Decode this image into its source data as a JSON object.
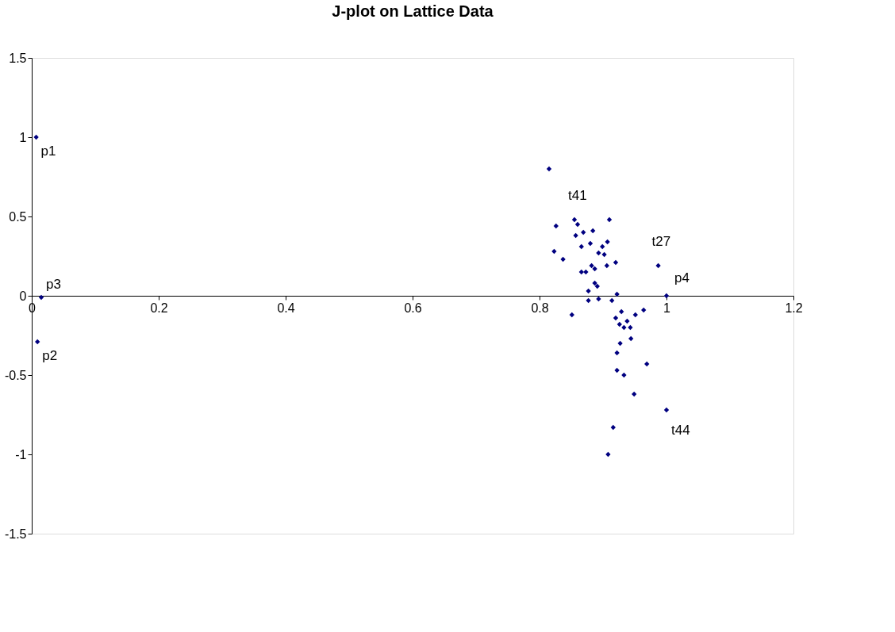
{
  "chart_data": {
    "type": "scatter",
    "title": "J-plot on Lattice Data",
    "series": [
      {
        "color": "#000080",
        "x": [
          0.007,
          0.009,
          0.015,
          1.0,
          0.815,
          0.855,
          0.91,
          0.826,
          0.86,
          0.869,
          0.884,
          0.857,
          0.866,
          0.88,
          0.907,
          0.899,
          0.823,
          0.893,
          0.902,
          0.837,
          0.92,
          0.882,
          0.887,
          0.906,
          0.866,
          0.873,
          0.987,
          0.887,
          0.891,
          0.877,
          0.922,
          0.877,
          0.893,
          0.914,
          0.851,
          0.929,
          0.964,
          0.951,
          0.92,
          0.938,
          0.926,
          0.933,
          0.943,
          0.944,
          0.927,
          0.922,
          0.969,
          0.922,
          0.933,
          0.949,
          1.0,
          0.916,
          0.908
        ],
        "values": [
          1.0,
          -0.29,
          -0.01,
          0.0,
          0.8,
          0.48,
          0.48,
          0.44,
          0.45,
          0.4,
          0.41,
          0.38,
          0.31,
          0.33,
          0.34,
          0.31,
          0.28,
          0.27,
          0.26,
          0.23,
          0.21,
          0.19,
          0.17,
          0.19,
          0.15,
          0.15,
          0.19,
          0.08,
          0.06,
          0.03,
          0.01,
          -0.03,
          -0.02,
          -0.03,
          -0.12,
          -0.1,
          -0.09,
          -0.12,
          -0.14,
          -0.16,
          -0.18,
          -0.2,
          -0.2,
          -0.27,
          -0.3,
          -0.36,
          -0.43,
          -0.47,
          -0.5,
          -0.62,
          -0.72,
          -0.83,
          -1.0
        ]
      }
    ],
    "annotations": [
      {
        "text": "p1",
        "x": 0.007,
        "y": 1.0
      },
      {
        "text": "p2",
        "x": 0.009,
        "y": -0.29
      },
      {
        "text": "p3",
        "x": 0.015,
        "y": -0.01
      },
      {
        "text": "p4",
        "x": 1.0,
        "y": 0.0
      },
      {
        "text": "t41",
        "x": 0.855,
        "y": 0.48
      },
      {
        "text": "t27",
        "x": 0.987,
        "y": 0.19
      },
      {
        "text": "t44",
        "x": 1.0,
        "y": -0.72
      }
    ],
    "xlim": [
      0,
      1.2
    ],
    "xticks": [
      0,
      0.2,
      0.4,
      0.6,
      0.8,
      1,
      1.2
    ],
    "ylim": [
      -1.5,
      1.5
    ],
    "yticks": [
      -1.5,
      -1,
      -0.5,
      0,
      0.5,
      1,
      1.5
    ],
    "marker": "diamond",
    "grid": false
  }
}
